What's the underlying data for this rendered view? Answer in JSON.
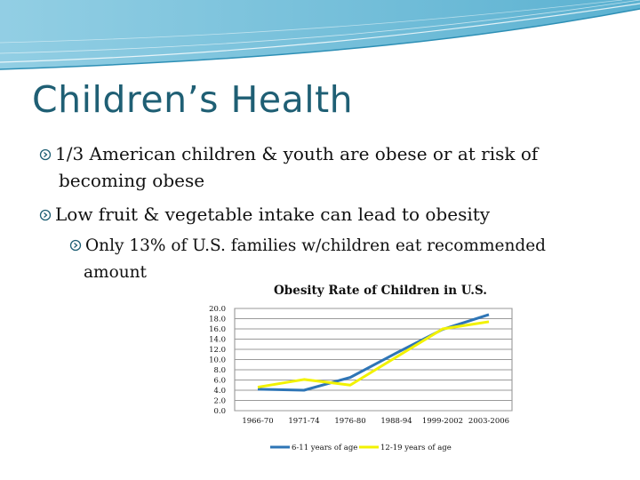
{
  "slide": {
    "title": "Children’s Health",
    "bullets": [
      {
        "line1": "1/3 American children & youth are obese or at risk of",
        "line2": "becoming obese"
      },
      {
        "line1": "Low fruit & vegetable intake can lead to obesity"
      },
      {
        "line1": "Only 13% of U.S. families w/children eat recommended",
        "line2": "amount"
      }
    ]
  },
  "colors": {
    "title": "#1f5f74",
    "series_6_11": "#2e75b6",
    "series_12_19": "#f2f200",
    "grid": "#9a9a9a",
    "plot_bg": "#ffffff",
    "wave": "#5bb3d3"
  },
  "chart_data": {
    "type": "line",
    "title": "Obesity Rate of Children in U.S.",
    "xlabel": "",
    "ylabel": "",
    "categories": [
      "1966-70",
      "1971-74",
      "1976-80",
      "1988-94",
      "1999-2002",
      "2003-2006"
    ],
    "series": [
      {
        "name": "6-11 years of age",
        "values": [
          4.2,
          4.0,
          6.5,
          11.3,
          15.9,
          18.8
        ]
      },
      {
        "name": "12-19 years of age",
        "values": [
          4.6,
          6.1,
          5.0,
          10.5,
          16.0,
          17.4
        ]
      }
    ],
    "ylim": [
      0,
      20
    ],
    "yticks": [
      "20.0",
      "18.0",
      "16.0",
      "14.0",
      "12.0",
      "10.0",
      "8.0",
      "6.0",
      "4.0",
      "2.0",
      "0.0"
    ],
    "grid": true,
    "legend": "bottom"
  }
}
